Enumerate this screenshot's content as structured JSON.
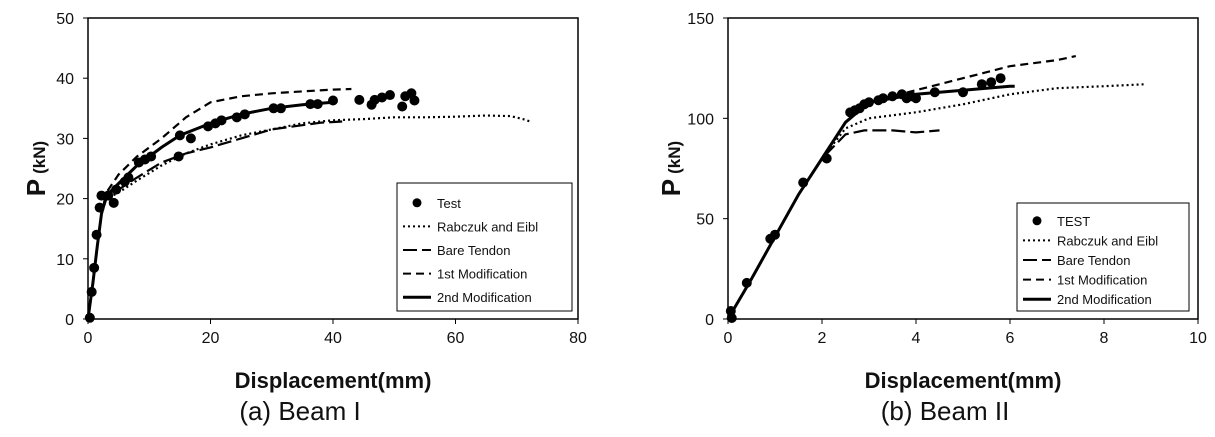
{
  "chart_data": [
    {
      "type": "scatter",
      "caption": "(a) Beam I",
      "xlabel": "Displacement(mm)",
      "ylabel": "P",
      "ylabel_unit": "(kN)",
      "xlim": [
        0,
        80
      ],
      "ylim": [
        0,
        50
      ],
      "xticks": [
        0,
        20,
        40,
        60,
        80
      ],
      "yticks": [
        0,
        10,
        20,
        30,
        40,
        50
      ],
      "grid": false,
      "legend_position": "bottom-right",
      "series": [
        {
          "name": "Test",
          "style": "dots",
          "points": [
            [
              0.3,
              0.2
            ],
            [
              0.6,
              4.5
            ],
            [
              1.0,
              8.5
            ],
            [
              1.4,
              14
            ],
            [
              1.9,
              18.5
            ],
            [
              2.2,
              20.5
            ],
            [
              3.3,
              20.5
            ],
            [
              4.2,
              19.3
            ],
            [
              4.6,
              21.5
            ],
            [
              6.0,
              22.8
            ],
            [
              6.6,
              23.5
            ],
            [
              8.3,
              26
            ],
            [
              9.3,
              26.5
            ],
            [
              10.3,
              27
            ],
            [
              14.8,
              27
            ],
            [
              15,
              30.5
            ],
            [
              16.8,
              30
            ],
            [
              19.6,
              32
            ],
            [
              20.8,
              32.5
            ],
            [
              21.8,
              33
            ],
            [
              24.3,
              33.5
            ],
            [
              25.6,
              34
            ],
            [
              30.3,
              35
            ],
            [
              31.5,
              35
            ],
            [
              36.3,
              35.7
            ],
            [
              37.5,
              35.7
            ],
            [
              40,
              36.3
            ],
            [
              44.3,
              36.4
            ],
            [
              46.3,
              35.6
            ],
            [
              46.8,
              36.4
            ],
            [
              48,
              36.8
            ],
            [
              49.3,
              37.2
            ],
            [
              51.3,
              35.3
            ],
            [
              51.8,
              37
            ],
            [
              52.8,
              37.5
            ],
            [
              53.3,
              36.3
            ]
          ]
        },
        {
          "name": "Rabczuk and Eibl",
          "style": "dotted",
          "points": [
            [
              0,
              0
            ],
            [
              0.8,
              6
            ],
            [
              1.5,
              12
            ],
            [
              2.2,
              17.5
            ],
            [
              3,
              20
            ],
            [
              5,
              21
            ],
            [
              8,
              23
            ],
            [
              12,
              25.5
            ],
            [
              16,
              27.5
            ],
            [
              20,
              29
            ],
            [
              25,
              30.5
            ],
            [
              30,
              31.5
            ],
            [
              35,
              32.5
            ],
            [
              40,
              33
            ],
            [
              45,
              33.2
            ],
            [
              50,
              33.5
            ],
            [
              55,
              33.5
            ],
            [
              60,
              33.6
            ],
            [
              65,
              33.8
            ],
            [
              69,
              33.7
            ],
            [
              71,
              33.2
            ],
            [
              72.5,
              32.7
            ]
          ]
        },
        {
          "name": "Bare Tendon",
          "style": "longdash",
          "points": [
            [
              0,
              0
            ],
            [
              0.8,
              6
            ],
            [
              1.5,
              12
            ],
            [
              2.2,
              17.5
            ],
            [
              3,
              20
            ],
            [
              5,
              21.5
            ],
            [
              8,
              23.5
            ],
            [
              12,
              26
            ],
            [
              16,
              27.5
            ],
            [
              20,
              28.5
            ],
            [
              25,
              30
            ],
            [
              30,
              31.5
            ],
            [
              35,
              32.2
            ],
            [
              38,
              32.6
            ],
            [
              41.5,
              32.8
            ]
          ]
        },
        {
          "name": "1st Modification",
          "style": "dashed",
          "points": [
            [
              0,
              0
            ],
            [
              0.8,
              6
            ],
            [
              1.5,
              12
            ],
            [
              2.2,
              17.5
            ],
            [
              3,
              21
            ],
            [
              5,
              24
            ],
            [
              8,
              27
            ],
            [
              12,
              30
            ],
            [
              16,
              33.5
            ],
            [
              20,
              36
            ],
            [
              25,
              37
            ],
            [
              30,
              37.5
            ],
            [
              35,
              37.8
            ],
            [
              40,
              38.1
            ],
            [
              43,
              38.2
            ]
          ]
        },
        {
          "name": "2nd Modification",
          "style": "solid",
          "points": [
            [
              0,
              0
            ],
            [
              0.8,
              6
            ],
            [
              1.5,
              12
            ],
            [
              2.2,
              17.5
            ],
            [
              3,
              20.5
            ],
            [
              5,
              22.5
            ],
            [
              8,
              25.5
            ],
            [
              10,
              27
            ],
            [
              12,
              28.5
            ],
            [
              15,
              30.5
            ],
            [
              20,
              32.5
            ],
            [
              25,
              34
            ],
            [
              30,
              35
            ],
            [
              35,
              35.6
            ],
            [
              40,
              36
            ]
          ]
        }
      ]
    },
    {
      "type": "scatter",
      "caption": "(b) Beam II",
      "xlabel": "Displacement(mm)",
      "ylabel": "P",
      "ylabel_unit": "(kN)",
      "xlim": [
        0,
        10
      ],
      "ylim": [
        0,
        150
      ],
      "xticks": [
        0,
        2,
        4,
        6,
        8,
        10
      ],
      "yticks": [
        0,
        50,
        100,
        150
      ],
      "grid": false,
      "legend_position": "bottom-right",
      "series": [
        {
          "name": "TEST",
          "style": "dots",
          "points": [
            [
              0.06,
              4
            ],
            [
              0.08,
              0.5
            ],
            [
              0.4,
              18
            ],
            [
              0.9,
              40
            ],
            [
              1.0,
              42
            ],
            [
              1.6,
              68
            ],
            [
              2.1,
              80
            ],
            [
              2.6,
              103
            ],
            [
              2.7,
              104
            ],
            [
              2.8,
              105
            ],
            [
              2.9,
              107
            ],
            [
              3.0,
              108
            ],
            [
              3.2,
              109
            ],
            [
              3.3,
              110
            ],
            [
              3.5,
              111
            ],
            [
              3.7,
              112
            ],
            [
              3.8,
              110
            ],
            [
              3.9,
              111
            ],
            [
              4.0,
              110
            ],
            [
              4.4,
              113
            ],
            [
              5.0,
              113
            ],
            [
              5.4,
              117
            ],
            [
              5.6,
              118
            ],
            [
              5.8,
              120
            ]
          ]
        },
        {
          "name": "Rabczuk and Eibl",
          "style": "dotted",
          "points": [
            [
              0,
              0
            ],
            [
              0.5,
              20
            ],
            [
              1,
              41
            ],
            [
              1.5,
              62
            ],
            [
              2,
              80
            ],
            [
              2.5,
              95
            ],
            [
              3,
              100
            ],
            [
              4,
              103
            ],
            [
              5,
              107
            ],
            [
              6,
              112
            ],
            [
              7,
              115
            ],
            [
              8,
              116
            ],
            [
              8.9,
              117
            ]
          ]
        },
        {
          "name": "Bare Tendon",
          "style": "longdash",
          "points": [
            [
              0,
              0
            ],
            [
              0.5,
              20
            ],
            [
              1,
              41
            ],
            [
              1.5,
              62
            ],
            [
              2,
              80
            ],
            [
              2.5,
              92
            ],
            [
              2.9,
              94
            ],
            [
              3.5,
              94
            ],
            [
              4,
              93
            ],
            [
              4.5,
              94
            ]
          ]
        },
        {
          "name": "1st Modification",
          "style": "dashed",
          "points": [
            [
              0,
              0
            ],
            [
              0.5,
              20
            ],
            [
              1,
              41
            ],
            [
              1.5,
              62
            ],
            [
              2,
              80
            ],
            [
              2.5,
              98
            ],
            [
              3,
              108
            ],
            [
              4,
              114
            ],
            [
              5,
              120
            ],
            [
              6,
              126
            ],
            [
              7,
              129
            ],
            [
              7.4,
              131
            ]
          ]
        },
        {
          "name": "2nd Modification",
          "style": "solid",
          "points": [
            [
              0,
              0
            ],
            [
              0.5,
              20
            ],
            [
              1,
              41
            ],
            [
              1.5,
              62
            ],
            [
              2,
              80
            ],
            [
              2.5,
              98
            ],
            [
              3,
              108
            ],
            [
              4,
              112
            ],
            [
              5,
              114
            ],
            [
              6,
              116
            ],
            [
              6.1,
              116
            ]
          ]
        }
      ]
    }
  ]
}
